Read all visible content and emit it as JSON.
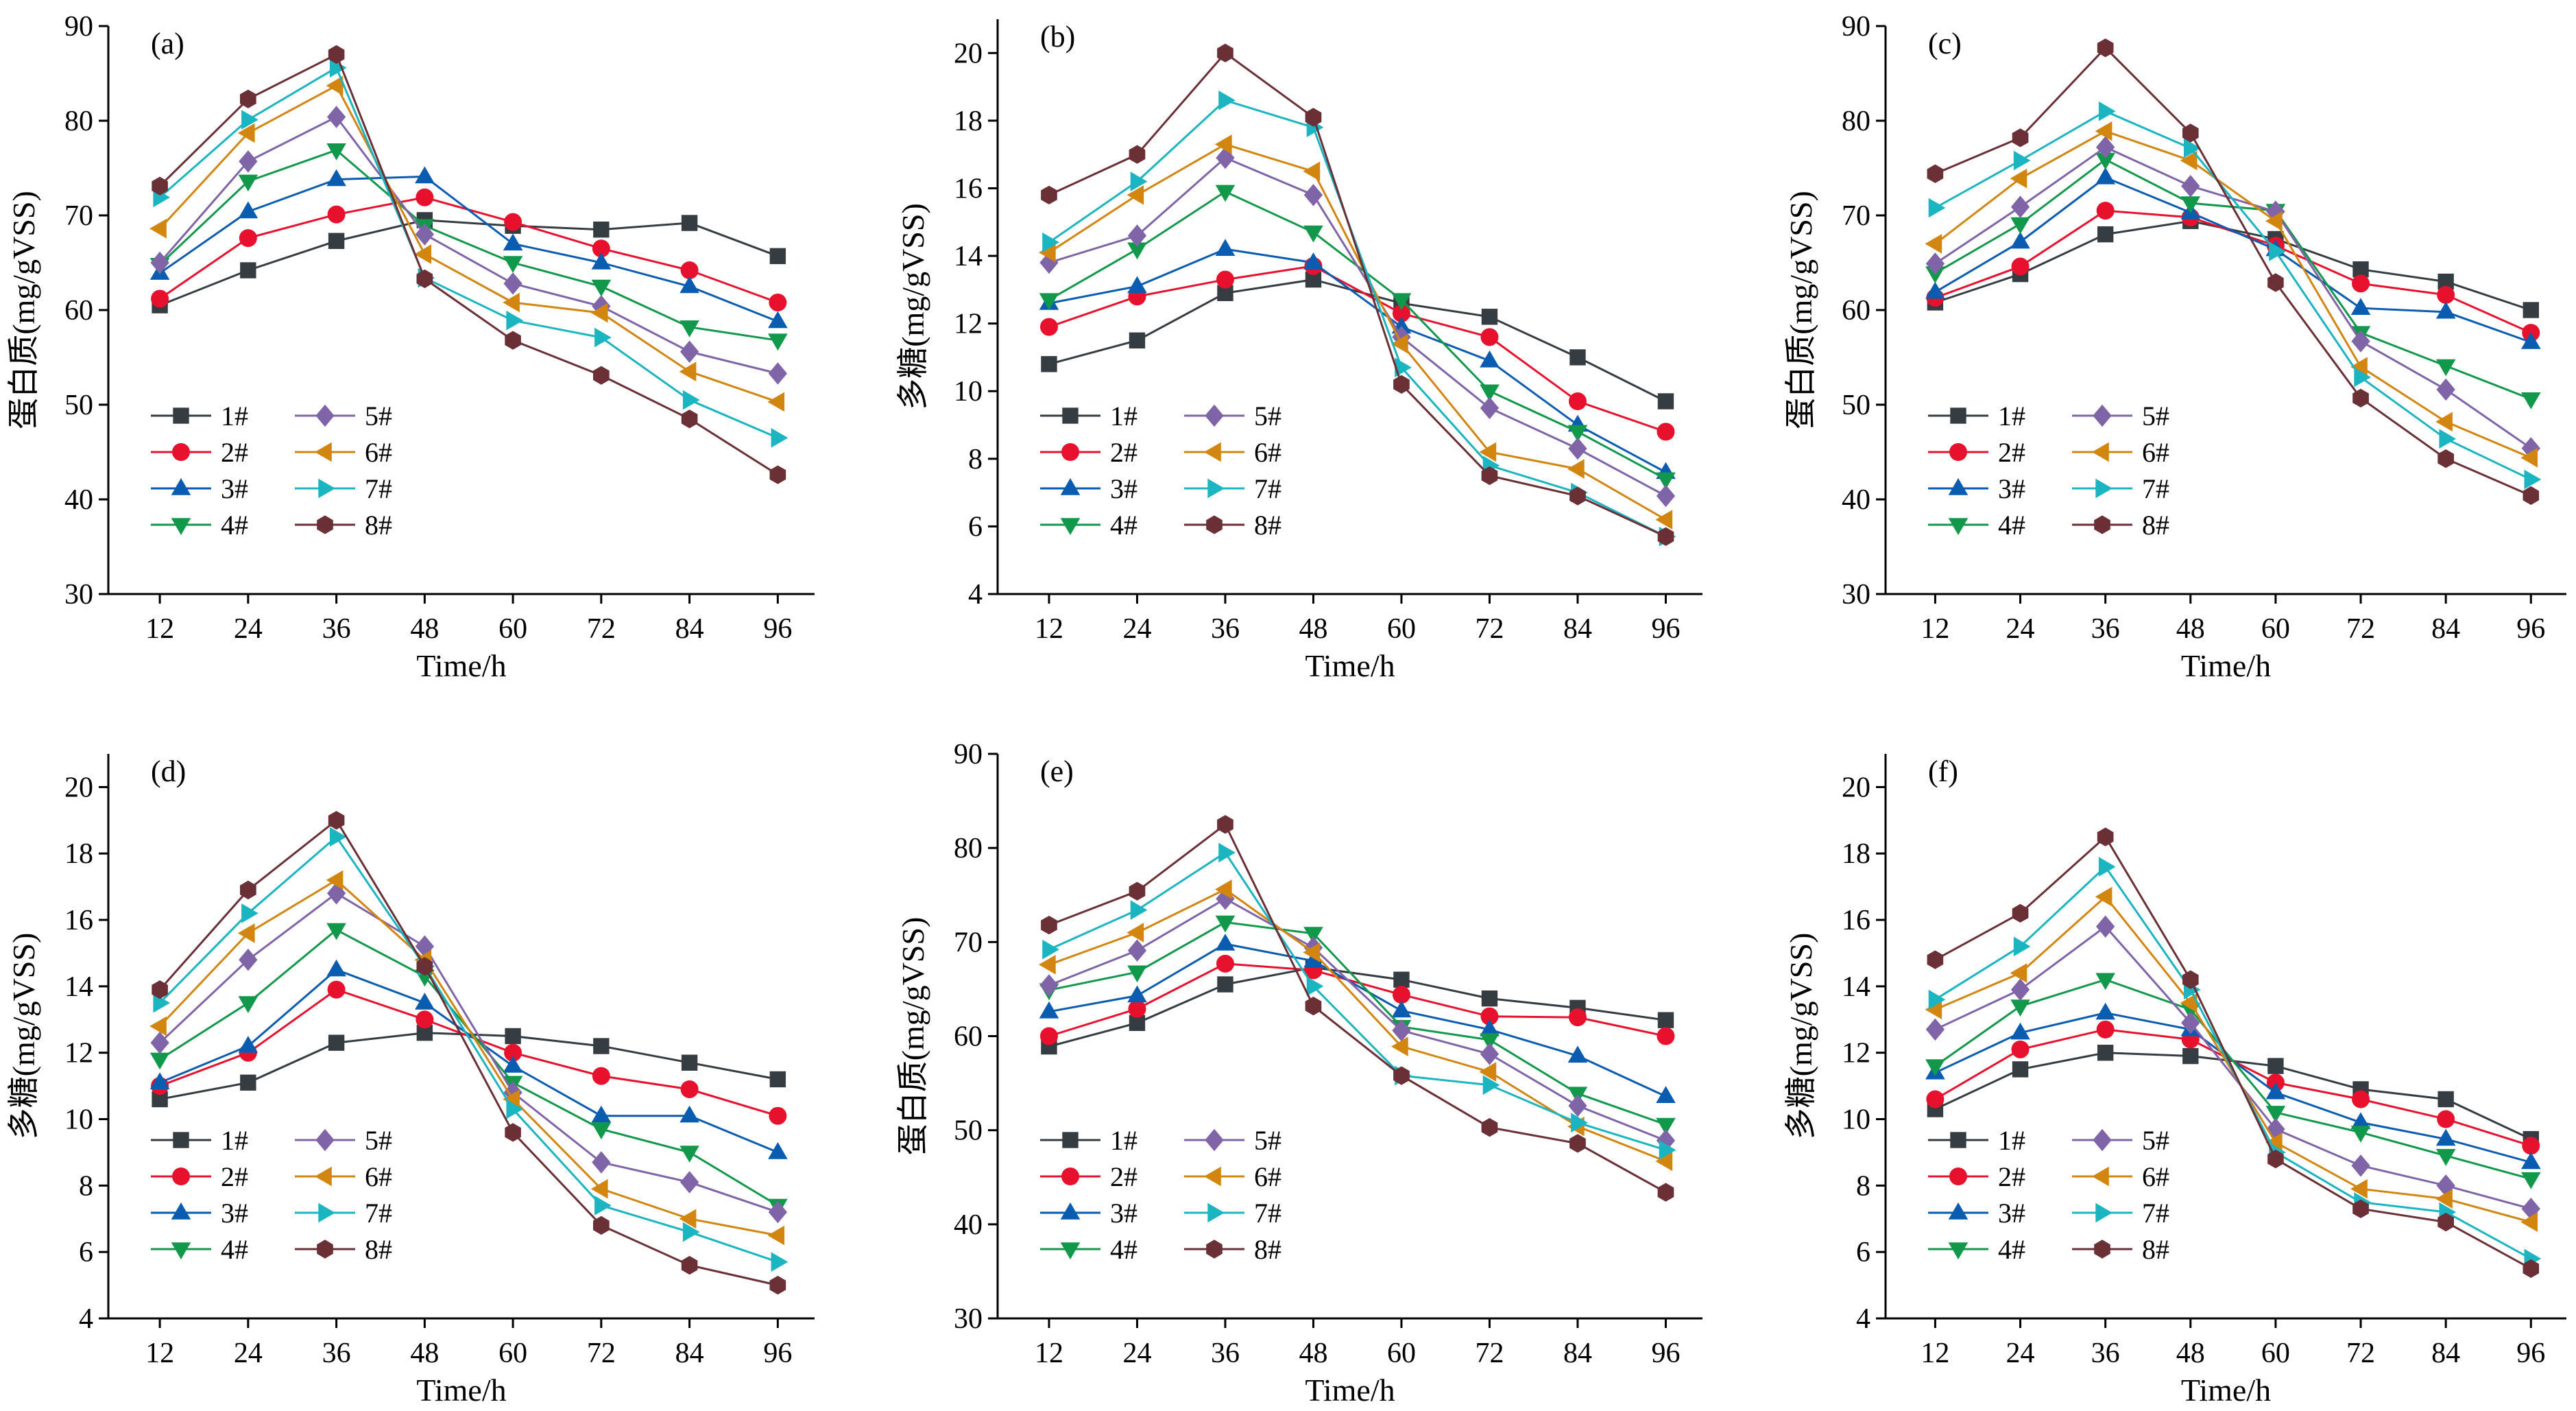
{
  "series_styles": [
    {
      "name": "1#",
      "color": "#353d42",
      "marker": "square"
    },
    {
      "name": "2#",
      "color": "#e8112d",
      "marker": "circle"
    },
    {
      "name": "3#",
      "color": "#0a5cb0",
      "marker": "triangle-up"
    },
    {
      "name": "4#",
      "color": "#11984a",
      "marker": "triangle-down"
    },
    {
      "name": "5#",
      "color": "#8064a8",
      "marker": "diamond"
    },
    {
      "name": "6#",
      "color": "#d2860f",
      "marker": "triangle-left"
    },
    {
      "name": "7#",
      "color": "#1ab5c0",
      "marker": "triangle-right"
    },
    {
      "name": "8#",
      "color": "#6b2f36",
      "marker": "hexagon"
    }
  ],
  "chart_data": [
    {
      "type": "line",
      "panel_label": "(a)",
      "title": "",
      "xlabel": "Time/h",
      "ylabel": "蛋白质(mg/gVSS)",
      "x": [
        12,
        24,
        36,
        48,
        60,
        72,
        84,
        96
      ],
      "ylim": [
        30,
        90
      ],
      "yticks": [
        30,
        40,
        50,
        60,
        70,
        80,
        90
      ],
      "legend_position": "lower-left",
      "grid": false,
      "series": [
        {
          "name": "1#",
          "values": [
            60.5,
            64.2,
            67.3,
            69.5,
            68.9,
            68.5,
            69.2,
            65.7
          ]
        },
        {
          "name": "2#",
          "values": [
            61.2,
            67.6,
            70.1,
            71.9,
            69.3,
            66.5,
            64.2,
            60.8
          ]
        },
        {
          "name": "3#",
          "values": [
            63.9,
            70.4,
            73.8,
            74.1,
            67.0,
            65.0,
            62.5,
            58.8
          ]
        },
        {
          "name": "4#",
          "values": [
            64.8,
            73.6,
            76.9,
            68.9,
            65.0,
            62.5,
            58.2,
            56.8
          ]
        },
        {
          "name": "5#",
          "values": [
            65.0,
            75.7,
            80.4,
            68.0,
            62.8,
            60.4,
            55.6,
            53.3
          ]
        },
        {
          "name": "6#",
          "values": [
            68.6,
            78.7,
            83.7,
            65.9,
            60.8,
            59.7,
            53.5,
            50.3
          ]
        },
        {
          "name": "7#",
          "values": [
            71.9,
            80.1,
            85.6,
            63.4,
            58.9,
            57.1,
            50.5,
            46.5
          ]
        },
        {
          "name": "8#",
          "values": [
            73.1,
            82.3,
            87.0,
            63.3,
            56.8,
            53.1,
            48.5,
            42.6
          ]
        }
      ]
    },
    {
      "type": "line",
      "panel_label": "(b)",
      "title": "",
      "xlabel": "Time/h",
      "ylabel": "多糖(mg/gVSS)",
      "x": [
        12,
        24,
        36,
        48,
        60,
        72,
        84,
        96
      ],
      "ylim": [
        4,
        21
      ],
      "yticks": [
        4,
        6,
        8,
        10,
        12,
        14,
        16,
        18,
        20
      ],
      "legend_position": "lower-left",
      "grid": false,
      "series": [
        {
          "name": "1#",
          "values": [
            10.8,
            11.5,
            12.9,
            13.3,
            12.6,
            12.2,
            11.0,
            9.7
          ]
        },
        {
          "name": "2#",
          "values": [
            11.9,
            12.8,
            13.3,
            13.7,
            12.3,
            11.6,
            9.7,
            8.8
          ]
        },
        {
          "name": "3#",
          "values": [
            12.6,
            13.1,
            14.2,
            13.8,
            11.9,
            10.9,
            9.0,
            7.6
          ]
        },
        {
          "name": "4#",
          "values": [
            12.7,
            14.2,
            15.9,
            14.7,
            12.7,
            10.0,
            8.8,
            7.4
          ]
        },
        {
          "name": "5#",
          "values": [
            13.8,
            14.6,
            16.9,
            15.8,
            11.6,
            9.5,
            8.3,
            6.9
          ]
        },
        {
          "name": "6#",
          "values": [
            14.1,
            15.8,
            17.3,
            16.5,
            11.4,
            8.2,
            7.7,
            6.2
          ]
        },
        {
          "name": "7#",
          "values": [
            14.4,
            16.2,
            18.6,
            17.8,
            10.7,
            7.8,
            7.0,
            5.7
          ]
        },
        {
          "name": "8#",
          "values": [
            15.8,
            17.0,
            20.0,
            18.1,
            10.2,
            7.5,
            6.9,
            5.7
          ]
        }
      ]
    },
    {
      "type": "line",
      "panel_label": "(c)",
      "title": "",
      "xlabel": "Time/h",
      "ylabel": "蛋白质(mg/gVSS)",
      "x": [
        12,
        24,
        36,
        48,
        60,
        72,
        84,
        96
      ],
      "ylim": [
        30,
        90
      ],
      "yticks": [
        30,
        40,
        50,
        60,
        70,
        80,
        90
      ],
      "legend_position": "lower-left",
      "grid": false,
      "series": [
        {
          "name": "1#",
          "values": [
            60.8,
            63.8,
            68.0,
            69.4,
            67.5,
            64.3,
            63.0,
            60.0
          ]
        },
        {
          "name": "2#",
          "values": [
            61.3,
            64.6,
            70.5,
            69.8,
            66.8,
            62.8,
            61.6,
            57.6
          ]
        },
        {
          "name": "3#",
          "values": [
            61.9,
            67.2,
            74.0,
            70.3,
            66.4,
            60.2,
            59.8,
            56.6
          ]
        },
        {
          "name": "4#",
          "values": [
            63.9,
            69.1,
            75.9,
            71.3,
            70.5,
            57.6,
            54.1,
            50.6
          ]
        },
        {
          "name": "5#",
          "values": [
            64.9,
            70.9,
            77.2,
            73.1,
            70.4,
            56.7,
            51.6,
            45.4
          ]
        },
        {
          "name": "6#",
          "values": [
            67.0,
            73.9,
            78.9,
            75.8,
            69.4,
            54.0,
            48.2,
            44.4
          ]
        },
        {
          "name": "7#",
          "values": [
            70.8,
            75.8,
            81.0,
            77.1,
            66.2,
            52.9,
            46.4,
            42.1
          ]
        },
        {
          "name": "8#",
          "values": [
            74.4,
            78.2,
            87.7,
            78.7,
            62.9,
            50.7,
            44.3,
            40.4
          ]
        }
      ]
    },
    {
      "type": "line",
      "panel_label": "(d)",
      "title": "",
      "xlabel": "Time/h",
      "ylabel": "多糖(mg/gVSS)",
      "x": [
        12,
        24,
        36,
        48,
        60,
        72,
        84,
        96
      ],
      "ylim": [
        4,
        21
      ],
      "yticks": [
        4,
        6,
        8,
        10,
        12,
        14,
        16,
        18,
        20
      ],
      "legend_position": "lower-left",
      "grid": false,
      "series": [
        {
          "name": "1#",
          "values": [
            10.6,
            11.1,
            12.3,
            12.6,
            12.5,
            12.2,
            11.7,
            11.2
          ]
        },
        {
          "name": "2#",
          "values": [
            11.0,
            12.0,
            13.9,
            13.0,
            12.0,
            11.3,
            10.9,
            10.1
          ]
        },
        {
          "name": "3#",
          "values": [
            11.1,
            12.2,
            14.5,
            13.5,
            11.6,
            10.1,
            10.1,
            9.0
          ]
        },
        {
          "name": "4#",
          "values": [
            11.8,
            13.5,
            15.7,
            14.3,
            11.1,
            9.7,
            9.0,
            7.4
          ]
        },
        {
          "name": "5#",
          "values": [
            12.3,
            14.8,
            16.8,
            15.2,
            10.8,
            8.7,
            8.1,
            7.2
          ]
        },
        {
          "name": "6#",
          "values": [
            12.8,
            15.6,
            17.2,
            14.8,
            10.6,
            7.9,
            7.0,
            6.5
          ]
        },
        {
          "name": "7#",
          "values": [
            13.5,
            16.2,
            18.5,
            14.6,
            10.3,
            7.4,
            6.6,
            5.7
          ]
        },
        {
          "name": "8#",
          "values": [
            13.9,
            16.9,
            19.0,
            14.6,
            9.6,
            6.8,
            5.6,
            5.0
          ]
        }
      ]
    },
    {
      "type": "line",
      "panel_label": "(e)",
      "title": "",
      "xlabel": "Time/h",
      "ylabel": "蛋白质(mg/gVSS)",
      "x": [
        12,
        24,
        36,
        48,
        60,
        72,
        84,
        96
      ],
      "ylim": [
        30,
        90
      ],
      "yticks": [
        30,
        40,
        50,
        60,
        70,
        80,
        90
      ],
      "legend_position": "lower-left",
      "grid": false,
      "series": [
        {
          "name": "1#",
          "values": [
            58.9,
            61.4,
            65.5,
            67.3,
            66.0,
            64.0,
            63.0,
            61.7
          ]
        },
        {
          "name": "2#",
          "values": [
            60.0,
            62.9,
            67.7,
            67.0,
            64.4,
            62.1,
            62.0,
            60.0
          ]
        },
        {
          "name": "3#",
          "values": [
            62.6,
            64.3,
            69.8,
            68.0,
            62.7,
            60.7,
            57.9,
            53.6
          ]
        },
        {
          "name": "4#",
          "values": [
            64.9,
            66.8,
            72.1,
            70.9,
            61.0,
            59.6,
            53.9,
            50.6
          ]
        },
        {
          "name": "5#",
          "values": [
            65.4,
            69.1,
            74.6,
            69.4,
            60.6,
            58.1,
            52.6,
            48.9
          ]
        },
        {
          "name": "6#",
          "values": [
            67.6,
            71.0,
            75.6,
            68.9,
            58.9,
            56.2,
            50.4,
            46.7
          ]
        },
        {
          "name": "7#",
          "values": [
            69.2,
            73.4,
            79.5,
            65.3,
            55.8,
            54.8,
            50.8,
            47.9
          ]
        },
        {
          "name": "8#",
          "values": [
            71.8,
            75.4,
            82.5,
            63.2,
            55.8,
            50.3,
            48.6,
            43.4
          ]
        }
      ]
    },
    {
      "type": "line",
      "panel_label": "(f)",
      "title": "",
      "xlabel": "Time/h",
      "ylabel": "多糖(mg/gVSS)",
      "x": [
        12,
        24,
        36,
        48,
        60,
        72,
        84,
        96
      ],
      "ylim": [
        4,
        21
      ],
      "yticks": [
        4,
        6,
        8,
        10,
        12,
        14,
        16,
        18,
        20
      ],
      "legend_position": "lower-left",
      "grid": false,
      "series": [
        {
          "name": "1#",
          "values": [
            10.3,
            11.5,
            12.0,
            11.9,
            11.6,
            10.9,
            10.6,
            9.4
          ]
        },
        {
          "name": "2#",
          "values": [
            10.6,
            12.1,
            12.7,
            12.4,
            11.1,
            10.6,
            10.0,
            9.2
          ]
        },
        {
          "name": "3#",
          "values": [
            11.4,
            12.6,
            13.2,
            12.7,
            10.8,
            9.9,
            9.4,
            8.7
          ]
        },
        {
          "name": "4#",
          "values": [
            11.6,
            13.4,
            14.2,
            13.3,
            10.2,
            9.6,
            8.9,
            8.2
          ]
        },
        {
          "name": "5#",
          "values": [
            12.7,
            13.9,
            15.8,
            12.9,
            9.7,
            8.6,
            8.0,
            7.3
          ]
        },
        {
          "name": "6#",
          "values": [
            13.3,
            14.4,
            16.7,
            13.5,
            9.3,
            7.9,
            7.6,
            6.9
          ]
        },
        {
          "name": "7#",
          "values": [
            13.6,
            15.2,
            17.6,
            13.9,
            9.0,
            7.5,
            7.2,
            5.8
          ]
        },
        {
          "name": "8#",
          "values": [
            14.8,
            16.2,
            18.5,
            14.2,
            8.8,
            7.3,
            6.9,
            5.5
          ]
        }
      ]
    }
  ]
}
